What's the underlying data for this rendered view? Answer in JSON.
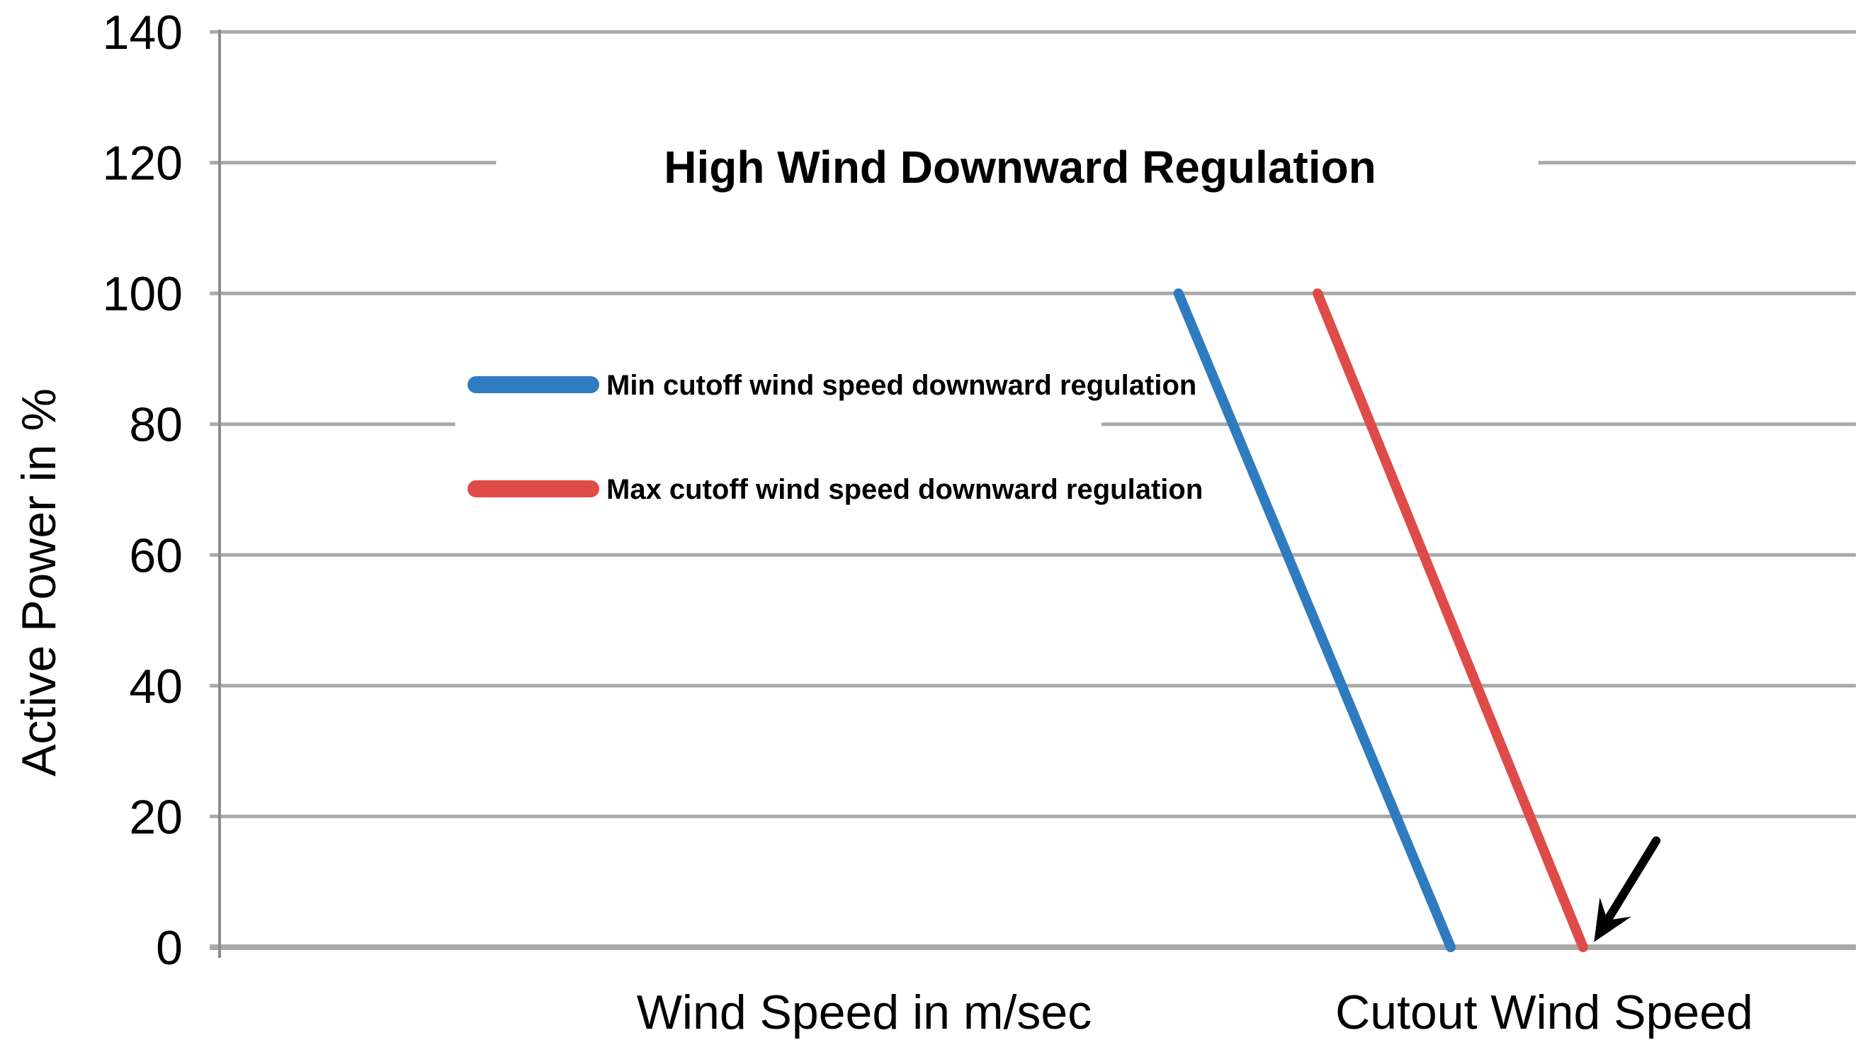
{
  "chart_data": {
    "type": "line",
    "title": "High Wind Downward Regulation",
    "ylabel": "Active Power in %",
    "xlabel_left": "Wind Speed in m/sec",
    "xlabel_right": "Cutout Wind Speed",
    "ylim": [
      0,
      140
    ],
    "yticks": [
      140,
      120,
      100,
      80,
      60,
      40,
      20,
      0
    ],
    "grid": "horizontal-only",
    "grid_color": "#A9A9A9",
    "axis_color": "#8C8C8C",
    "text_color": "#000000",
    "background": "#FFFFFF",
    "legend_position": "inside-upper-left",
    "series": [
      {
        "name": "Min cutoff wind speed downward regulation",
        "color": "#2E7CBF",
        "points": [
          {
            "x_frac": 0.586,
            "y": 100
          },
          {
            "x_frac": 0.7524,
            "y": 0
          }
        ]
      },
      {
        "name": "Max cutoff wind speed downward regulation",
        "color": "#DE4B48",
        "points": [
          {
            "x_frac": 0.671,
            "y": 100
          },
          {
            "x_frac": 0.8333,
            "y": 0
          }
        ]
      }
    ],
    "annotation_arrow": {
      "color": "#000000",
      "tail": {
        "x_frac": 0.878,
        "y": 16.3
      },
      "tip": {
        "x_frac": 0.84,
        "y": 0.8
      }
    },
    "grid_breaks": {
      "default": [
        [
          -0.006,
          1
        ]
      ],
      "120": [
        [
          -0.006,
          0.169
        ],
        [
          0.806,
          1
        ]
      ],
      "80": [
        [
          -0.006,
          0.144
        ],
        [
          0.539,
          1
        ]
      ]
    }
  }
}
